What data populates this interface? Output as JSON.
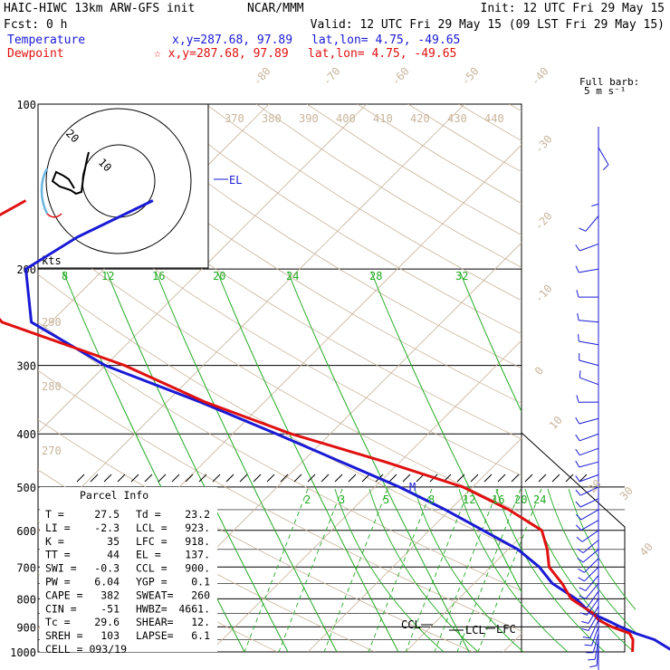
{
  "header": {
    "model": "HAIC-HIWC 13km ARW-GFS init",
    "org": "NCAR/MMM",
    "init": "Init: 12 UTC Fri 29 May 15",
    "fcst": "Fcst:   0 h",
    "valid": "Valid: 12 UTC Fri 29 May 15 (09 LST Fri 29 May 15)",
    "temp_label": "Temperature",
    "temp_xy": "x,y=287.68, 97.89",
    "temp_latlon": "lat,lon=  4.75, -49.65",
    "dew_label": "Dewpoint",
    "dew_xy": "☆ x,y=287.68, 97.89",
    "dew_latlon": "lat,lon=  4.75, -49.65",
    "barb_title_1": "Full barb:",
    "barb_title_2": "5 m s⁻¹"
  },
  "colors": {
    "temperature": "#1a1ad6",
    "dewpoint": "#e01010",
    "isotherm": "#c8b49a",
    "mixing_ratio": "#22aa22",
    "hodo_cyan": "#6ab6e0"
  },
  "chart_data": {
    "type": "line",
    "title": "HAIC-HIWC 13km ARW-GFS init",
    "ylabel_pressure_ticks": [
      "100",
      "200",
      "300",
      "400",
      "500",
      "600",
      "700",
      "800",
      "900",
      "1000"
    ],
    "isotherm_labels": [
      "-80",
      "-70",
      "-60",
      "-50",
      "-40",
      "-30",
      "-20",
      "-10",
      "0",
      "10",
      "20",
      "30",
      "40"
    ],
    "theta_e_labels": [
      "370",
      "380",
      "390",
      "400",
      "410",
      "420",
      "430",
      "440"
    ],
    "theta_labels_left": [
      "290",
      "280",
      "270"
    ],
    "mixing_ratio_labels_upper": [
      "8",
      "12",
      "16",
      "20",
      "24",
      "28",
      "32"
    ],
    "mixing_ratio_labels_lower": [
      "2",
      "3",
      "5",
      "8",
      "12",
      "16",
      "20",
      "24"
    ],
    "series": [
      {
        "name": "Temperature",
        "color": "#1a1ad6",
        "x": [
          27.5,
          24.2,
          21.6,
          19.4,
          17.3,
          15.0,
          12.0,
          8.0,
          5.0,
          1.0,
          -4.5,
          -10.5,
          -17.5,
          -26.0,
          -35.5,
          -46.5,
          -60.0,
          -72.0,
          -78.0,
          -76.0,
          -72.0
        ],
        "y": [
          1000,
          950,
          925,
          900,
          875,
          850,
          800,
          750,
          700,
          650,
          600,
          550,
          500,
          450,
          400,
          350,
          300,
          250,
          200,
          175,
          150
        ]
      },
      {
        "name": "Dewpoint",
        "color": "#e01010",
        "x": [
          23.2,
          22.0,
          21.0,
          18.5,
          16.5,
          15.2,
          11.5,
          9.0,
          6.0,
          4.0,
          1.5,
          -4.0,
          -11.0,
          -21.5,
          -34.0,
          -46.0,
          -58.0,
          -75.0,
          -85.0,
          -88.0,
          -85.0
        ],
        "y": [
          1000,
          950,
          925,
          900,
          875,
          850,
          800,
          750,
          700,
          650,
          600,
          550,
          500,
          450,
          400,
          350,
          300,
          250,
          200,
          175,
          150
        ]
      }
    ],
    "annotations": [
      "EL",
      "M",
      "CCL",
      "LCL",
      "LFC",
      "kts"
    ],
    "hodograph": {
      "ring_labels": [
        "20",
        "10"
      ],
      "speed_label": "kts"
    },
    "parcel_info": {
      "title": "Parcel Info",
      "rows": [
        [
          "T  =",
          "27.5",
          "Td =",
          "23.2"
        ],
        [
          "LI =",
          "-2.3",
          "LCL =",
          "923."
        ],
        [
          "K  =",
          "35",
          "LFC =",
          "918."
        ],
        [
          "TT =",
          "44",
          "EL  =",
          "137."
        ],
        [
          "SWI =",
          "-0.3",
          "CCL =",
          "900."
        ],
        [
          "PW =",
          "6.04",
          "YGP =",
          "0.1"
        ],
        [
          "CAPE =",
          "382",
          "SWEAT=",
          "260"
        ],
        [
          "CIN =",
          "-51",
          "HWBZ=",
          "4661."
        ],
        [
          "Tc =",
          "29.6",
          "SHEAR=",
          "12."
        ],
        [
          "SREH =",
          "103",
          "LAPSE=",
          "6.1"
        ],
        [
          "CELL = 093/19",
          "",
          "",
          ""
        ]
      ]
    },
    "wind_barbs": {
      "pressure": [
        120,
        140,
        160,
        180,
        200,
        225,
        250,
        275,
        300,
        325,
        350,
        375,
        400,
        425,
        450,
        475,
        500,
        525,
        550,
        575,
        600,
        625,
        650,
        675,
        700,
        725,
        750,
        775,
        800,
        825,
        850,
        875,
        900,
        925,
        950,
        975,
        1000
      ],
      "dir_deg": [
        150,
        180,
        220,
        250,
        260,
        270,
        275,
        280,
        285,
        290,
        270,
        255,
        250,
        250,
        255,
        250,
        245,
        245,
        240,
        240,
        235,
        230,
        230,
        225,
        225,
        220,
        220,
        215,
        215,
        210,
        210,
        205,
        200,
        195,
        190,
        185,
        180
      ],
      "speed_ms": [
        10,
        10,
        10,
        10,
        10,
        10,
        10,
        10,
        10,
        10,
        10,
        10,
        10,
        10,
        10,
        10,
        10,
        10,
        10,
        10,
        10,
        10,
        10,
        10,
        10,
        10,
        10,
        10,
        10,
        10,
        10,
        10,
        10,
        10,
        10,
        10,
        10
      ]
    }
  }
}
